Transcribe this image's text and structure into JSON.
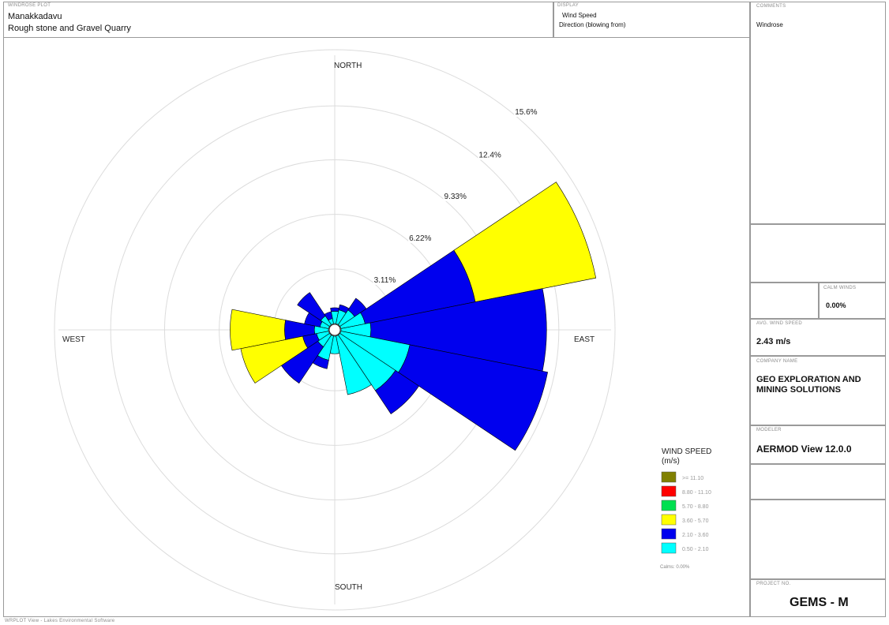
{
  "header": {
    "plot_caption": "WINDROSE PLOT",
    "site_name": "Manakkadavu",
    "site_desc": "Rough stone and Gravel Quarry",
    "display_caption": "DISPLAY",
    "display_line1": "Wind Speed",
    "display_line2": "Direction (blowing from)"
  },
  "sidebar": {
    "comments_caption": "COMMENTS",
    "comments_value": "Windrose",
    "calm_caption": "CALM WINDS",
    "calm_value": "0.00%",
    "avg_caption": "AVG. WIND SPEED",
    "avg_value": "2.43 m/s",
    "company_caption": "COMPANY NAME",
    "company_value": "GEO EXPLORATION AND MINING SOLUTIONS",
    "modeler_caption": "MODELER",
    "modeler_value": "AERMOD View 12.0.0",
    "project_caption": "PROJECT NO.",
    "project_value": "GEMS - M"
  },
  "footer": {
    "credit": "WRPLOT View - Lakes Environmental Software"
  },
  "colors": {
    "bin1": "#808000",
    "bin2": "#ff0000",
    "bin3": "#00e050",
    "bin4": "#ffff00",
    "bin5": "#0000ee",
    "bin6": "#00ffff"
  },
  "chart_data": {
    "type": "windrose",
    "compass": {
      "north": "NORTH",
      "south": "SOUTH",
      "east": "EAST",
      "west": "WEST"
    },
    "ring_labels": [
      "3.11%",
      "6.22%",
      "9.33%",
      "12.4%",
      "15.6%"
    ],
    "ring_values": [
      3.11,
      6.22,
      9.33,
      12.4,
      15.6
    ],
    "legend": {
      "title": "WIND SPEED",
      "unit": "(m/s)",
      "bins": [
        {
          "label": ">= 11.10",
          "color": "#808000"
        },
        {
          "label": "8.80 - 11.10",
          "color": "#ff0000"
        },
        {
          "label": "5.70 - 8.80",
          "color": "#00e050"
        },
        {
          "label": "3.60 - 5.70",
          "color": "#ffff00"
        },
        {
          "label": "2.10 - 3.60",
          "color": "#0000ee"
        },
        {
          "label": "0.50 - 2.10",
          "color": "#00ffff"
        }
      ],
      "calms": "Calms: 0.00%"
    },
    "directions": [
      {
        "deg": 0,
        "bins": [
          0.7,
          0.2
        ]
      },
      {
        "deg": 22.5,
        "bins": [
          0.8,
          0.3
        ]
      },
      {
        "deg": 45,
        "bins": [
          1.0,
          0.8
        ]
      },
      {
        "deg": 67.5,
        "bins": [
          1.4,
          6.4,
          7.0
        ]
      },
      {
        "deg": 90,
        "bins": [
          1.7,
          10.0
        ]
      },
      {
        "deg": 112.5,
        "bins": [
          4.0,
          8.0
        ]
      },
      {
        "deg": 135,
        "bins": [
          3.8,
          1.6
        ]
      },
      {
        "deg": 157.5,
        "bins": [
          3.4
        ]
      },
      {
        "deg": 180,
        "bins": [
          1.0
        ]
      },
      {
        "deg": 202.5,
        "bins": [
          1.4,
          0.5
        ]
      },
      {
        "deg": 225,
        "bins": [
          0.8,
          2.5
        ]
      },
      {
        "deg": 247.5,
        "bins": [
          0.7,
          0.8,
          3.6
        ]
      },
      {
        "deg": 270,
        "bins": [
          0.8,
          1.7,
          3.1
        ]
      },
      {
        "deg": 292.5,
        "bins": [
          0.5,
          0.9
        ]
      },
      {
        "deg": 315,
        "bins": [
          0.6,
          1.6
        ]
      },
      {
        "deg": 337.5,
        "bins": [
          0.3,
          0.4
        ]
      }
    ]
  }
}
